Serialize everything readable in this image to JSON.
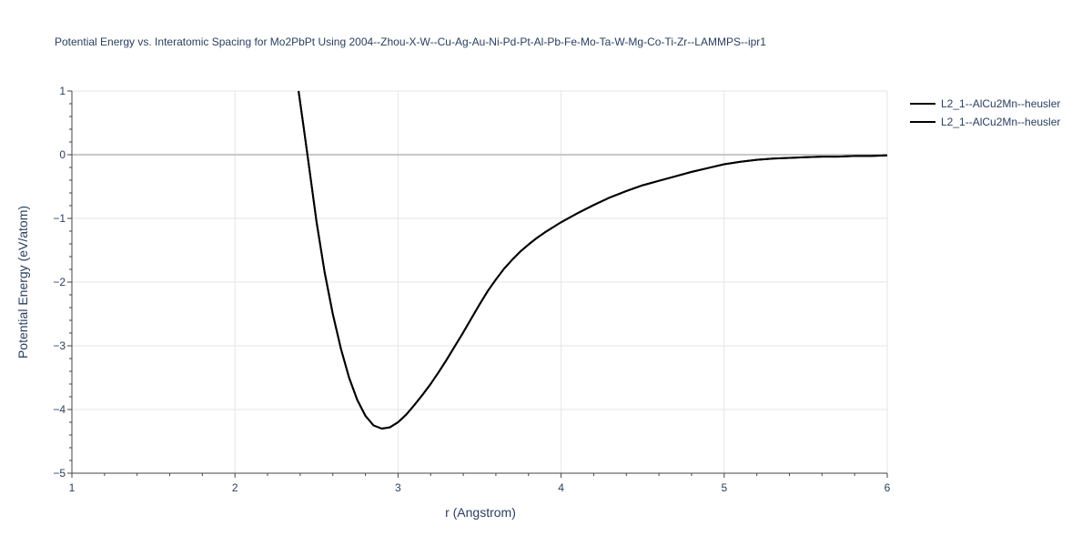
{
  "chart_data": {
    "type": "line",
    "title": "Potential Energy vs. Interatomic Spacing for Mo2PbPt Using 2004--Zhou-X-W--Cu-Ag-Au-Ni-Pd-Pt-Al-Pb-Fe-Mo-Ta-W-Mg-Co-Ti-Zr--LAMMPS--ipr1",
    "xlabel": "r (Angstrom)",
    "ylabel": "Potential Energy (eV/atom)",
    "xlim": [
      1,
      6
    ],
    "ylim": [
      -5,
      1
    ],
    "x_ticks": [
      1,
      2,
      3,
      4,
      5,
      6
    ],
    "x_tick_labels": [
      "1",
      "2",
      "3",
      "4",
      "5",
      "6"
    ],
    "y_ticks": [
      -5,
      -4,
      -3,
      -2,
      -1,
      0,
      1
    ],
    "y_tick_labels": [
      "−5",
      "−4",
      "−3",
      "−2",
      "−1",
      "0",
      "1"
    ],
    "grid": true,
    "legend_position": "top-right",
    "series": [
      {
        "name": "L2_1--AlCu2Mn--heusler",
        "color": "#000000",
        "x": [
          2.39,
          2.42,
          2.45,
          2.5,
          2.55,
          2.6,
          2.65,
          2.7,
          2.75,
          2.8,
          2.85,
          2.9,
          2.95,
          3.0,
          3.05,
          3.1,
          3.15,
          3.2,
          3.25,
          3.3,
          3.35,
          3.4,
          3.45,
          3.5,
          3.55,
          3.6,
          3.65,
          3.7,
          3.75,
          3.8,
          3.85,
          3.9,
          3.95,
          4.0,
          4.1,
          4.2,
          4.3,
          4.4,
          4.5,
          4.6,
          4.7,
          4.8,
          4.9,
          5.0,
          5.1,
          5.2,
          5.3,
          5.4,
          5.5,
          5.6,
          5.7,
          5.8,
          5.9,
          6.0
        ],
        "y": [
          1.0,
          0.45,
          -0.1,
          -1.05,
          -1.85,
          -2.5,
          -3.05,
          -3.5,
          -3.85,
          -4.1,
          -4.25,
          -4.3,
          -4.28,
          -4.2,
          -4.08,
          -3.93,
          -3.77,
          -3.6,
          -3.41,
          -3.21,
          -3.0,
          -2.79,
          -2.57,
          -2.35,
          -2.14,
          -1.96,
          -1.79,
          -1.65,
          -1.52,
          -1.41,
          -1.31,
          -1.22,
          -1.14,
          -1.06,
          -0.92,
          -0.79,
          -0.67,
          -0.57,
          -0.48,
          -0.41,
          -0.34,
          -0.27,
          -0.21,
          -0.15,
          -0.11,
          -0.08,
          -0.06,
          -0.05,
          -0.04,
          -0.03,
          -0.03,
          -0.02,
          -0.02,
          -0.01
        ]
      },
      {
        "name": "L2_1--AlCu2Mn--heusler",
        "color": "#000000",
        "x": [
          2.39,
          2.42,
          2.45,
          2.5,
          2.55,
          2.6,
          2.65,
          2.7,
          2.75,
          2.8,
          2.85,
          2.9,
          2.95,
          3.0,
          3.05,
          3.1,
          3.15,
          3.2,
          3.25,
          3.3,
          3.35,
          3.4,
          3.45,
          3.5,
          3.55,
          3.6,
          3.65,
          3.7,
          3.75,
          3.8,
          3.85,
          3.9,
          3.95,
          4.0,
          4.1,
          4.2,
          4.3,
          4.4,
          4.5,
          4.6,
          4.7,
          4.8,
          4.9,
          5.0,
          5.1,
          5.2,
          5.3,
          5.4,
          5.5,
          5.6,
          5.7,
          5.8,
          5.9,
          6.0
        ],
        "y": [
          1.0,
          0.45,
          -0.1,
          -1.05,
          -1.85,
          -2.5,
          -3.05,
          -3.5,
          -3.85,
          -4.1,
          -4.25,
          -4.3,
          -4.28,
          -4.2,
          -4.08,
          -3.93,
          -3.77,
          -3.6,
          -3.41,
          -3.21,
          -3.0,
          -2.79,
          -2.57,
          -2.35,
          -2.14,
          -1.96,
          -1.79,
          -1.65,
          -1.52,
          -1.41,
          -1.31,
          -1.22,
          -1.14,
          -1.06,
          -0.92,
          -0.79,
          -0.67,
          -0.57,
          -0.48,
          -0.41,
          -0.34,
          -0.27,
          -0.21,
          -0.15,
          -0.11,
          -0.08,
          -0.06,
          -0.05,
          -0.04,
          -0.03,
          -0.03,
          -0.02,
          -0.02,
          -0.01
        ]
      }
    ]
  }
}
